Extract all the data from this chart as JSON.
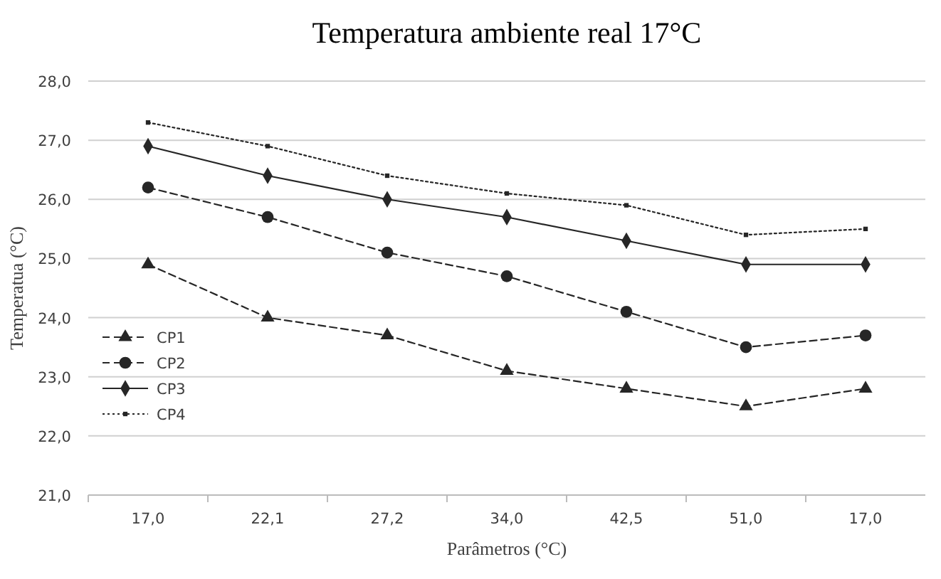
{
  "chart_data": {
    "type": "line",
    "title": "Temperatura ambiente real 17°C",
    "xlabel": "Parâmetros (°C)",
    "ylabel": "Temperatua (°C)",
    "categories": [
      "17,0",
      "22,1",
      "27,2",
      "34,0",
      "42,5",
      "51,0",
      "17,0"
    ],
    "series": [
      {
        "name": "CP1",
        "color": "#262626",
        "marker": "triangle",
        "line_style": "dashed",
        "values": [
          24.9,
          24.0,
          23.7,
          23.1,
          22.8,
          22.5,
          22.8
        ]
      },
      {
        "name": "CP2",
        "color": "#262626",
        "marker": "circle",
        "line_style": "dashed",
        "values": [
          26.2,
          25.7,
          25.1,
          24.7,
          24.1,
          23.5,
          23.7
        ]
      },
      {
        "name": "CP3",
        "color": "#262626",
        "marker": "diamond",
        "line_style": "solid",
        "values": [
          26.9,
          26.4,
          26.0,
          25.7,
          25.3,
          24.9,
          24.9
        ]
      },
      {
        "name": "CP4",
        "color": "#262626",
        "marker": "square",
        "line_style": "dotted",
        "values": [
          27.3,
          26.9,
          26.4,
          26.1,
          25.9,
          25.4,
          25.5
        ]
      }
    ],
    "ylim": [
      21,
      28
    ],
    "yticks": [
      {
        "value": 21,
        "label": "21,0"
      },
      {
        "value": 22,
        "label": "22,0"
      },
      {
        "value": 23,
        "label": "23,0"
      },
      {
        "value": 24,
        "label": "24,0"
      },
      {
        "value": 25,
        "label": "25,0"
      },
      {
        "value": 26,
        "label": "26,0"
      },
      {
        "value": 27,
        "label": "27,0"
      },
      {
        "value": 28,
        "label": "28,0"
      }
    ],
    "grid": "y",
    "legend": "bottom left"
  }
}
